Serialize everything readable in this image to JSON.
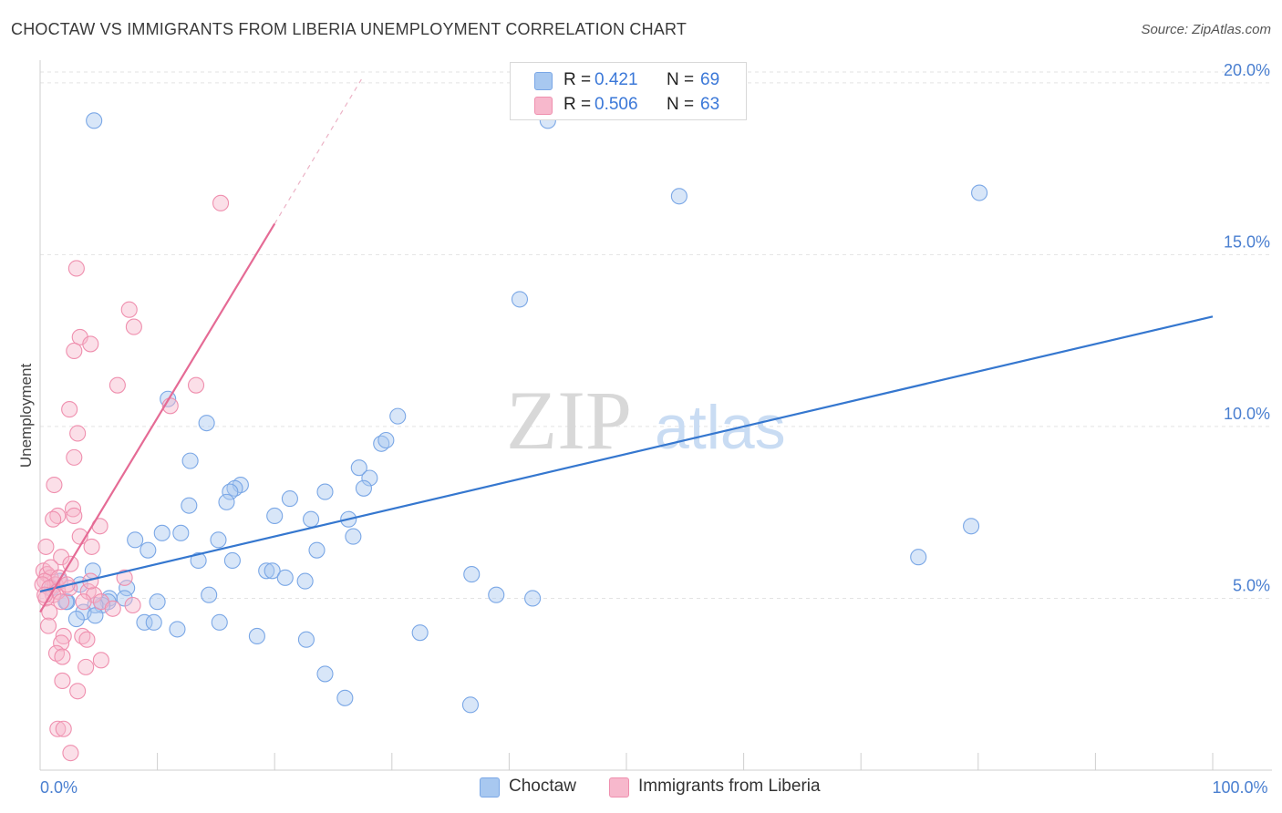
{
  "header": {
    "title": "CHOCTAW VS IMMIGRANTS FROM LIBERIA UNEMPLOYMENT CORRELATION CHART",
    "source": "Source: ZipAtlas.com"
  },
  "watermark": {
    "zip": "ZIP",
    "atlas": "atlas"
  },
  "legend": {
    "rows": [
      {
        "r_label": "R =",
        "r_value": "0.421",
        "n_label": "N =",
        "n_value": "69",
        "color": "#a8c8f0"
      },
      {
        "r_label": "R =",
        "r_value": "0.506",
        "n_label": "N =",
        "n_value": "63",
        "color": "#f7b8cc"
      }
    ]
  },
  "bottom_legend": [
    {
      "label": "Choctaw",
      "color": "#a8c8f0"
    },
    {
      "label": "Immigrants from Liberia",
      "color": "#f7b8cc"
    }
  ],
  "chart_data": {
    "type": "scatter",
    "title": "CHOCTAW VS IMMIGRANTS FROM LIBERIA UNEMPLOYMENT CORRELATION CHART",
    "xlabel": "",
    "ylabel": "Unemployment",
    "xlim": [
      0,
      100
    ],
    "ylim": [
      0,
      20.5
    ],
    "x_tick_labels": [
      {
        "value": 0,
        "label": "0.0%"
      },
      {
        "value": 100,
        "label": "100.0%"
      }
    ],
    "x_minor_ticks": [
      10,
      20,
      30,
      40,
      50,
      60,
      70,
      80,
      90,
      100
    ],
    "y_ticks": [
      {
        "value": 5,
        "label": "5.0%"
      },
      {
        "value": 10,
        "label": "10.0%"
      },
      {
        "value": 15,
        "label": "15.0%"
      },
      {
        "value": 20,
        "label": "20.0%"
      }
    ],
    "grid": true,
    "series": [
      {
        "name": "Choctaw",
        "color": "#7aa7e6",
        "fill": "#a8c8f0",
        "line_color": "#3577cf",
        "trend": {
          "x0": 0,
          "y0": 5.2,
          "x1": 100,
          "y1": 13.2,
          "dashed_to": null
        },
        "points": [
          [
            4.6,
            18.9
          ],
          [
            43.3,
            18.9
          ],
          [
            54.5,
            16.7
          ],
          [
            80.1,
            16.8
          ],
          [
            40.9,
            13.7
          ],
          [
            10.9,
            10.8
          ],
          [
            14.2,
            10.1
          ],
          [
            30.5,
            10.3
          ],
          [
            29.1,
            9.5
          ],
          [
            29.5,
            9.6
          ],
          [
            12.8,
            9.0
          ],
          [
            27.2,
            8.8
          ],
          [
            24.3,
            8.1
          ],
          [
            28.1,
            8.5
          ],
          [
            27.6,
            8.2
          ],
          [
            17.1,
            8.3
          ],
          [
            16.6,
            8.2
          ],
          [
            16.2,
            8.1
          ],
          [
            15.9,
            7.8
          ],
          [
            12.7,
            7.7
          ],
          [
            21.3,
            7.9
          ],
          [
            20.0,
            7.4
          ],
          [
            23.1,
            7.3
          ],
          [
            26.3,
            7.3
          ],
          [
            79.4,
            7.1
          ],
          [
            10.4,
            6.9
          ],
          [
            12.0,
            6.9
          ],
          [
            8.1,
            6.7
          ],
          [
            15.2,
            6.7
          ],
          [
            26.7,
            6.8
          ],
          [
            9.2,
            6.4
          ],
          [
            23.6,
            6.4
          ],
          [
            13.5,
            6.1
          ],
          [
            16.4,
            6.1
          ],
          [
            74.9,
            6.2
          ],
          [
            4.5,
            5.8
          ],
          [
            19.3,
            5.8
          ],
          [
            19.8,
            5.8
          ],
          [
            20.9,
            5.6
          ],
          [
            22.6,
            5.5
          ],
          [
            3.4,
            5.4
          ],
          [
            7.4,
            5.3
          ],
          [
            14.4,
            5.1
          ],
          [
            7.2,
            5.0
          ],
          [
            2.3,
            4.9
          ],
          [
            5.9,
            5.0
          ],
          [
            5.8,
            4.9
          ],
          [
            5.3,
            4.8
          ],
          [
            4.7,
            4.8
          ],
          [
            10.0,
            4.9
          ],
          [
            38.9,
            5.1
          ],
          [
            3.7,
            4.6
          ],
          [
            4.7,
            4.5
          ],
          [
            2.2,
            4.9
          ],
          [
            1.0,
            5.3
          ],
          [
            3.1,
            4.4
          ],
          [
            8.9,
            4.3
          ],
          [
            9.7,
            4.3
          ],
          [
            15.3,
            4.3
          ],
          [
            11.7,
            4.1
          ],
          [
            18.5,
            3.9
          ],
          [
            22.7,
            3.8
          ],
          [
            32.4,
            4.0
          ],
          [
            36.8,
            5.7
          ],
          [
            42.0,
            5.0
          ],
          [
            24.3,
            2.8
          ],
          [
            26.0,
            2.1
          ],
          [
            36.7,
            1.9
          ],
          [
            1.7,
            5.5
          ]
        ]
      },
      {
        "name": "Immigrants from Liberia",
        "color": "#ef8fae",
        "fill": "#f7b8cc",
        "line_color": "#e56b95",
        "trend": {
          "x0": 0,
          "y0": 4.6,
          "x1": 20.0,
          "y1": 15.9,
          "dashed_to": {
            "x": 27.4,
            "y": 20.1
          }
        },
        "points": [
          [
            15.4,
            16.5
          ],
          [
            3.1,
            14.6
          ],
          [
            7.6,
            13.4
          ],
          [
            8.0,
            12.9
          ],
          [
            3.4,
            12.6
          ],
          [
            4.3,
            12.4
          ],
          [
            2.9,
            12.2
          ],
          [
            6.6,
            11.2
          ],
          [
            13.3,
            11.2
          ],
          [
            11.1,
            10.6
          ],
          [
            2.5,
            10.5
          ],
          [
            3.2,
            9.8
          ],
          [
            2.9,
            9.1
          ],
          [
            1.2,
            8.3
          ],
          [
            2.8,
            7.6
          ],
          [
            1.5,
            7.4
          ],
          [
            2.9,
            7.4
          ],
          [
            1.1,
            7.3
          ],
          [
            5.1,
            7.1
          ],
          [
            3.4,
            6.8
          ],
          [
            0.5,
            6.5
          ],
          [
            4.4,
            6.5
          ],
          [
            1.8,
            6.2
          ],
          [
            2.6,
            6.0
          ],
          [
            0.3,
            5.8
          ],
          [
            0.6,
            5.7
          ],
          [
            0.9,
            5.6
          ],
          [
            7.2,
            5.6
          ],
          [
            0.4,
            5.5
          ],
          [
            1.3,
            5.4
          ],
          [
            0.2,
            5.4
          ],
          [
            0.8,
            5.3
          ],
          [
            1.5,
            5.2
          ],
          [
            2.5,
            5.3
          ],
          [
            4.1,
            5.2
          ],
          [
            4.6,
            5.1
          ],
          [
            1.1,
            5.1
          ],
          [
            0.5,
            5.0
          ],
          [
            1.8,
            4.9
          ],
          [
            5.2,
            4.9
          ],
          [
            6.2,
            4.7
          ],
          [
            7.9,
            4.8
          ],
          [
            0.8,
            4.6
          ],
          [
            0.7,
            4.2
          ],
          [
            2.0,
            3.9
          ],
          [
            3.6,
            3.9
          ],
          [
            4.0,
            3.8
          ],
          [
            1.8,
            3.7
          ],
          [
            1.4,
            3.4
          ],
          [
            1.9,
            3.3
          ],
          [
            5.2,
            3.2
          ],
          [
            3.9,
            3.0
          ],
          [
            1.9,
            2.6
          ],
          [
            3.2,
            2.3
          ],
          [
            1.5,
            1.2
          ],
          [
            2.0,
            1.2
          ],
          [
            2.6,
            0.5
          ],
          [
            0.9,
            5.9
          ],
          [
            4.3,
            5.5
          ],
          [
            0.4,
            5.1
          ],
          [
            1.6,
            5.6
          ],
          [
            3.7,
            4.9
          ],
          [
            2.3,
            5.4
          ]
        ]
      }
    ]
  }
}
